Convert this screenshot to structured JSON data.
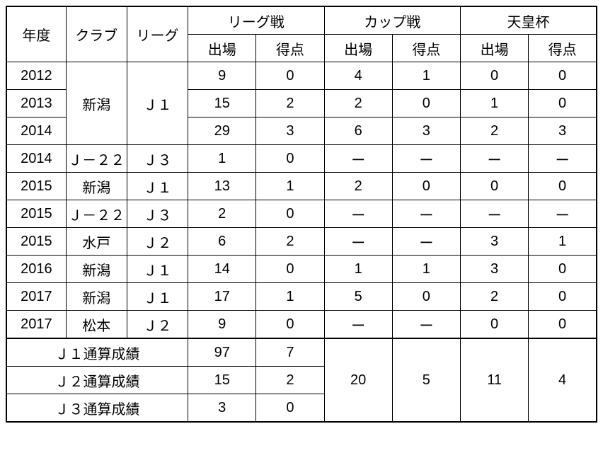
{
  "headers": {
    "year": "年度",
    "club": "クラブ",
    "league": "リーグ",
    "group_league": "リーグ戦",
    "group_cup": "カップ戦",
    "group_emperor": "天皇杯",
    "apps": "出場",
    "goals": "得点"
  },
  "rows": [
    {
      "year": "2012",
      "club": "新潟",
      "league": "Ｊ１",
      "la": "9",
      "lg": "0",
      "ca": "4",
      "cg": "1",
      "ea": "0",
      "eg": "0"
    },
    {
      "year": "2013",
      "club": "",
      "league": "",
      "la": "15",
      "lg": "2",
      "ca": "2",
      "cg": "0",
      "ea": "1",
      "eg": "0"
    },
    {
      "year": "2014",
      "club": "",
      "league": "",
      "la": "29",
      "lg": "3",
      "ca": "6",
      "cg": "3",
      "ea": "2",
      "eg": "3"
    },
    {
      "year": "2014",
      "club": "Ｊ－２２",
      "league": "Ｊ３",
      "la": "1",
      "lg": "0",
      "ca": "ー",
      "cg": "ー",
      "ea": "ー",
      "eg": "ー"
    },
    {
      "year": "2015",
      "club": "新潟",
      "league": "Ｊ１",
      "la": "13",
      "lg": "1",
      "ca": "2",
      "cg": "0",
      "ea": "0",
      "eg": "0"
    },
    {
      "year": "2015",
      "club": "Ｊ－２２",
      "league": "Ｊ３",
      "la": "2",
      "lg": "0",
      "ca": "ー",
      "cg": "ー",
      "ea": "ー",
      "eg": "ー"
    },
    {
      "year": "2015",
      "club": "水戸",
      "league": "Ｊ２",
      "la": "6",
      "lg": "2",
      "ca": "ー",
      "cg": "ー",
      "ea": "3",
      "eg": "1"
    },
    {
      "year": "2016",
      "club": "新潟",
      "league": "Ｊ１",
      "la": "14",
      "lg": "0",
      "ca": "1",
      "cg": "1",
      "ea": "3",
      "eg": "0"
    },
    {
      "year": "2017",
      "club": "新潟",
      "league": "Ｊ１",
      "la": "17",
      "lg": "1",
      "ca": "5",
      "cg": "0",
      "ea": "2",
      "eg": "0"
    },
    {
      "year": "2017",
      "club": "松本",
      "league": "Ｊ２",
      "la": "9",
      "lg": "0",
      "ca": "ー",
      "cg": "ー",
      "ea": "0",
      "eg": "0"
    }
  ],
  "totals": {
    "j1_label": "Ｊ１通算成績",
    "j1_la": "97",
    "j1_lg": "7",
    "j2_label": "Ｊ２通算成績",
    "j2_la": "15",
    "j2_lg": "2",
    "j3_label": "Ｊ３通算成績",
    "j3_la": "3",
    "j3_lg": "0",
    "cup_apps": "20",
    "cup_goals": "5",
    "emp_apps": "11",
    "emp_goals": "4"
  }
}
